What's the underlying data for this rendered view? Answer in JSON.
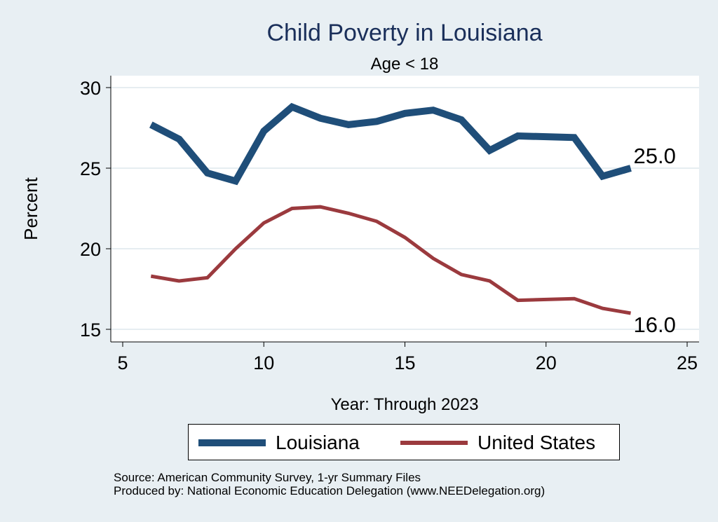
{
  "chart_data": {
    "type": "line",
    "title": "Child Poverty in Louisiana",
    "subtitle": "Age < 18",
    "xlabel": "Year: Through 2023",
    "ylabel": "Percent",
    "xlim": [
      5,
      25
    ],
    "ylim": [
      15,
      30
    ],
    "xticks": [
      5,
      10,
      15,
      20,
      25
    ],
    "yticks": [
      15,
      20,
      25,
      30
    ],
    "grid": true,
    "legend_position": "bottom",
    "series": [
      {
        "name": "Louisiana",
        "color": "#1f4e79",
        "x": [
          6,
          7,
          8,
          9,
          10,
          11,
          12,
          13,
          14,
          15,
          16,
          17,
          18,
          19,
          21,
          22,
          23
        ],
        "y": [
          27.7,
          26.8,
          24.7,
          24.2,
          27.3,
          28.8,
          28.1,
          27.7,
          27.9,
          28.4,
          28.6,
          28.0,
          26.1,
          27.0,
          26.9,
          24.5,
          25.0
        ],
        "end_label": "25.0"
      },
      {
        "name": "United States",
        "color": "#9b3a3e",
        "x": [
          6,
          7,
          8,
          9,
          10,
          11,
          12,
          13,
          14,
          15,
          16,
          17,
          18,
          19,
          21,
          22,
          23
        ],
        "y": [
          18.3,
          18.0,
          18.2,
          20.0,
          21.6,
          22.5,
          22.6,
          22.2,
          21.7,
          20.7,
          19.4,
          18.4,
          18.0,
          16.8,
          16.9,
          16.3,
          16.0
        ],
        "end_label": "16.0"
      }
    ]
  },
  "footer": {
    "source": "Source: American Community Survey, 1-yr Summary Files",
    "produced": "Produced by: National Economic Education Delegation (www.NEEDelegation.org)"
  }
}
